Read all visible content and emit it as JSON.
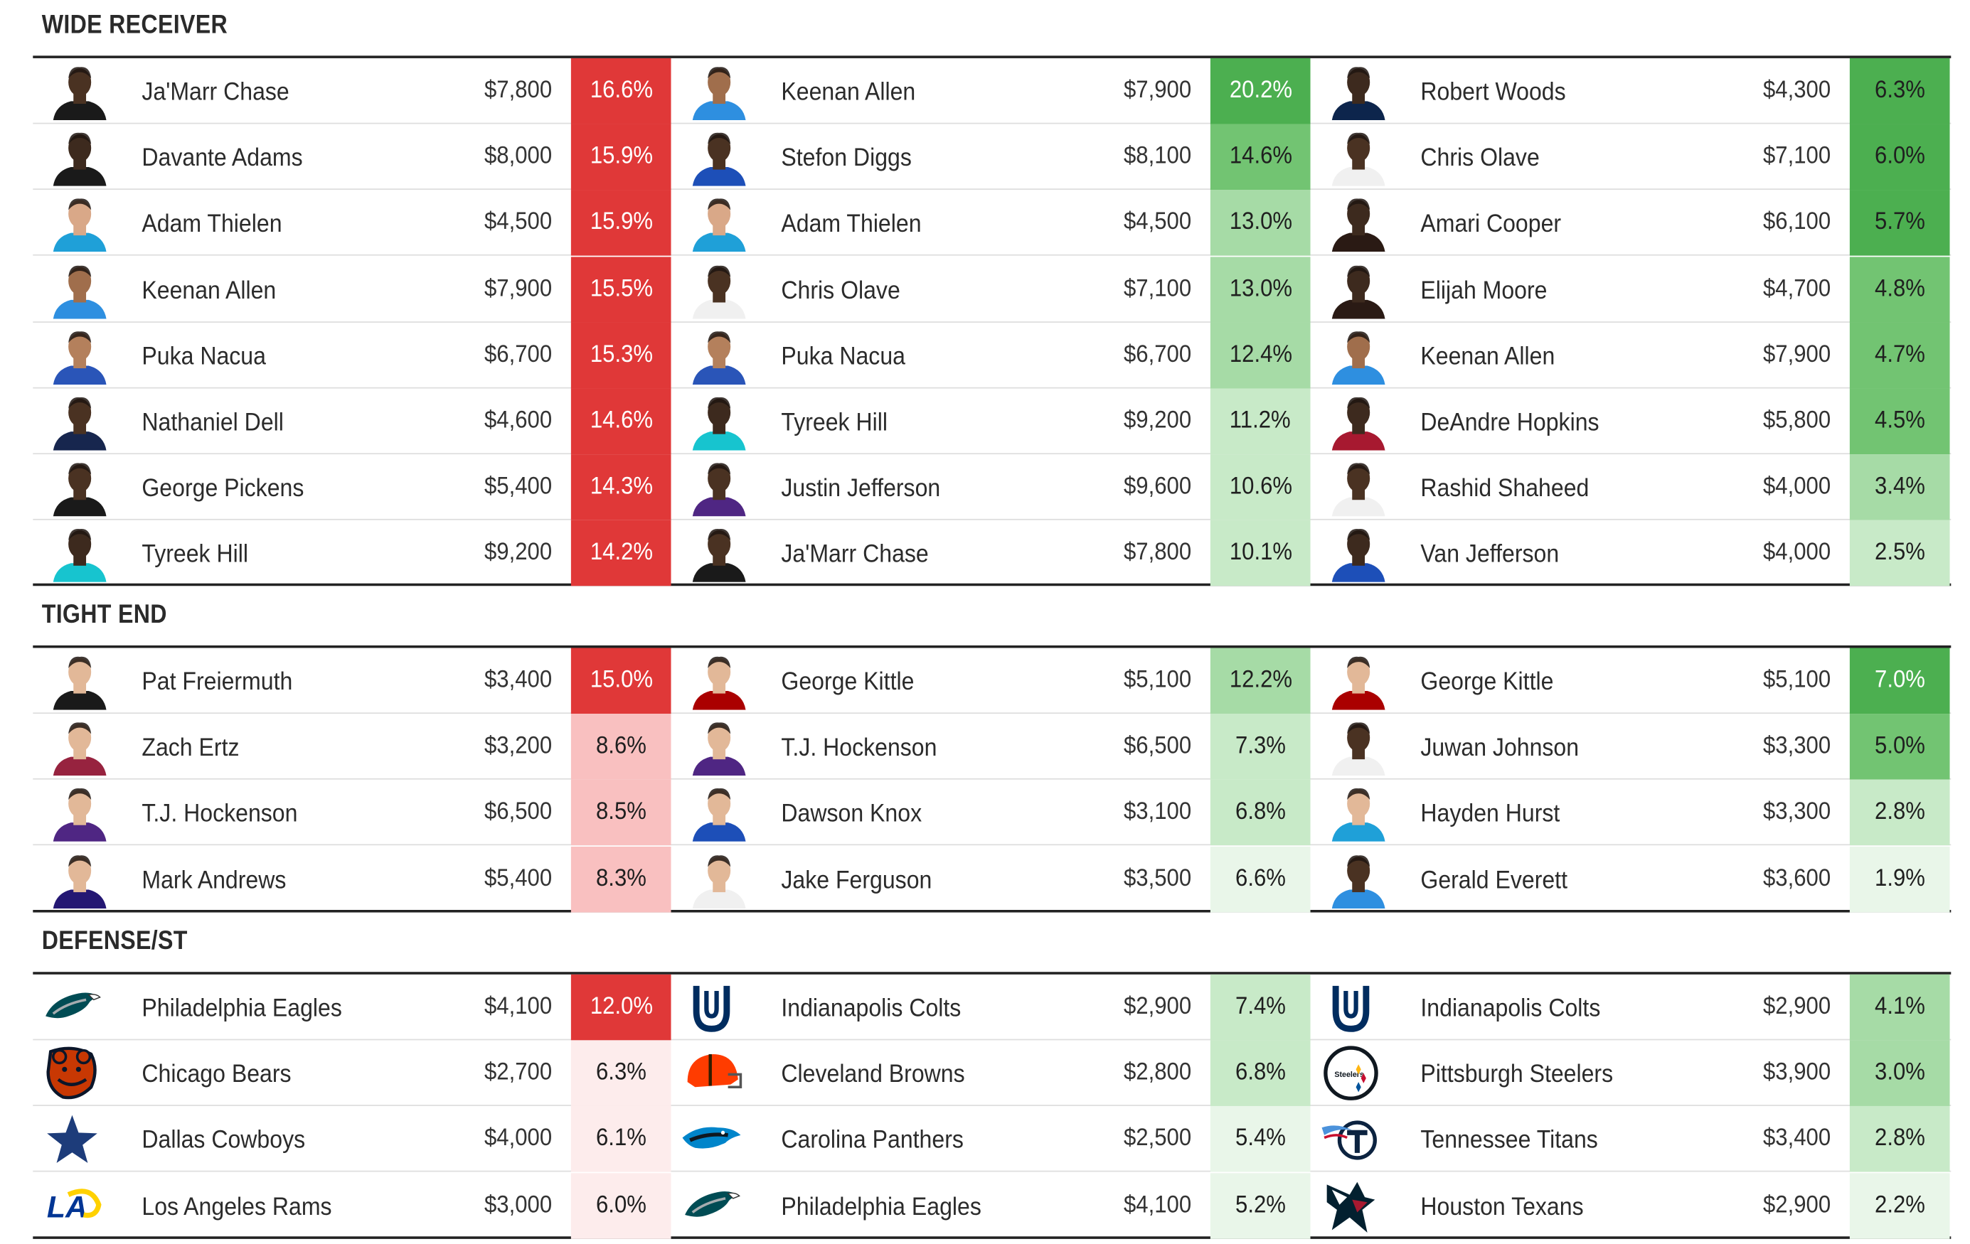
{
  "sections": [
    {
      "title": "WIDE RECEIVER",
      "groups": [
        {
          "players": [
            {
              "name": "Ja'Marr Chase",
              "salary": "$7,800",
              "pct": "16.6%",
              "jersey": "#1a1a1a",
              "skin": "#4a3222"
            },
            {
              "name": "Davante Adams",
              "salary": "$8,000",
              "pct": "15.9%",
              "jersey": "#1a1a1a",
              "skin": "#3d2a1e"
            },
            {
              "name": "Adam Thielen",
              "salary": "$4,500",
              "pct": "15.9%",
              "jersey": "#1fa0d8",
              "skin": "#d9a888"
            },
            {
              "name": "Keenan Allen",
              "salary": "$7,900",
              "pct": "15.5%",
              "jersey": "#2e8fe0",
              "skin": "#a06e4c"
            },
            {
              "name": "Puka Nacua",
              "salary": "$6,700",
              "pct": "15.3%",
              "jersey": "#2a55b8",
              "skin": "#b4805c"
            },
            {
              "name": "Nathaniel Dell",
              "salary": "$4,600",
              "pct": "14.6%",
              "jersey": "#17264e",
              "skin": "#4a3222"
            },
            {
              "name": "George Pickens",
              "salary": "$5,400",
              "pct": "14.3%",
              "jersey": "#1a1a1a",
              "skin": "#4a3222"
            },
            {
              "name": "Tyreek Hill",
              "salary": "$9,200",
              "pct": "14.2%",
              "jersey": "#17c4cf",
              "skin": "#3d2a1e"
            }
          ]
        },
        {
          "players": [
            {
              "name": "Keenan Allen",
              "salary": "$7,900",
              "pct": "20.2%",
              "jersey": "#2e8fe0",
              "skin": "#a06e4c"
            },
            {
              "name": "Stefon Diggs",
              "salary": "$8,100",
              "pct": "14.6%",
              "jersey": "#1d4fb8",
              "skin": "#4a3222"
            },
            {
              "name": "Adam Thielen",
              "salary": "$4,500",
              "pct": "13.0%",
              "jersey": "#1fa0d8",
              "skin": "#d9a888"
            },
            {
              "name": "Chris Olave",
              "salary": "$7,100",
              "pct": "13.0%",
              "jersey": "#f0f0f0",
              "skin": "#4a3222"
            },
            {
              "name": "Puka Nacua",
              "salary": "$6,700",
              "pct": "12.4%",
              "jersey": "#2a55b8",
              "skin": "#b4805c"
            },
            {
              "name": "Tyreek Hill",
              "salary": "$9,200",
              "pct": "11.2%",
              "jersey": "#17c4cf",
              "skin": "#3d2a1e"
            },
            {
              "name": "Justin Jefferson",
              "salary": "$9,600",
              "pct": "10.6%",
              "jersey": "#4f2683",
              "skin": "#4a3222"
            },
            {
              "name": "Ja'Marr Chase",
              "salary": "$7,800",
              "pct": "10.1%",
              "jersey": "#1a1a1a",
              "skin": "#4a3222"
            }
          ]
        },
        {
          "players": [
            {
              "name": "Robert Woods",
              "salary": "$4,300",
              "pct": "6.3%",
              "jersey": "#0d254c",
              "skin": "#3d2a1e"
            },
            {
              "name": "Chris Olave",
              "salary": "$7,100",
              "pct": "6.0%",
              "jersey": "#f0f0f0",
              "skin": "#4a3222"
            },
            {
              "name": "Amari Cooper",
              "salary": "$6,100",
              "pct": "5.7%",
              "jersey": "#2a1a14",
              "skin": "#3d2a1e"
            },
            {
              "name": "Elijah Moore",
              "salary": "$4,700",
              "pct": "4.8%",
              "jersey": "#2a1a14",
              "skin": "#3d2a1e"
            },
            {
              "name": "Keenan Allen",
              "salary": "$7,900",
              "pct": "4.7%",
              "jersey": "#2e8fe0",
              "skin": "#a06e4c"
            },
            {
              "name": "DeAndre Hopkins",
              "salary": "$5,800",
              "pct": "4.5%",
              "jersey": "#a71930",
              "skin": "#3d2a1e"
            },
            {
              "name": "Rashid Shaheed",
              "salary": "$4,000",
              "pct": "3.4%",
              "jersey": "#f0f0f0",
              "skin": "#4a3222"
            },
            {
              "name": "Van Jefferson",
              "salary": "$4,000",
              "pct": "2.5%",
              "jersey": "#1d4fb8",
              "skin": "#3d2a1e"
            }
          ]
        }
      ]
    },
    {
      "title": "TIGHT END",
      "groups": [
        {
          "players": [
            {
              "name": "Pat Freiermuth",
              "salary": "$3,400",
              "pct": "15.0%",
              "jersey": "#1a1a1a",
              "skin": "#e2b898"
            },
            {
              "name": "Zach Ertz",
              "salary": "$3,200",
              "pct": "8.6%",
              "jersey": "#97233f",
              "skin": "#e2b898"
            },
            {
              "name": "T.J. Hockenson",
              "salary": "$6,500",
              "pct": "8.5%",
              "jersey": "#4f2683",
              "skin": "#e2b898"
            },
            {
              "name": "Mark Andrews",
              "salary": "$5,400",
              "pct": "8.3%",
              "jersey": "#241773",
              "skin": "#e2b898"
            }
          ]
        },
        {
          "players": [
            {
              "name": "George Kittle",
              "salary": "$5,100",
              "pct": "12.2%",
              "jersey": "#aa0000",
              "skin": "#e2b898"
            },
            {
              "name": "T.J. Hockenson",
              "salary": "$6,500",
              "pct": "7.3%",
              "jersey": "#4f2683",
              "skin": "#e2b898"
            },
            {
              "name": "Dawson Knox",
              "salary": "$3,100",
              "pct": "6.8%",
              "jersey": "#1d4fb8",
              "skin": "#e2b898"
            },
            {
              "name": "Jake Ferguson",
              "salary": "$3,500",
              "pct": "6.6%",
              "jersey": "#f0f0f0",
              "skin": "#e2b898"
            }
          ]
        },
        {
          "players": [
            {
              "name": "George Kittle",
              "salary": "$5,100",
              "pct": "7.0%",
              "jersey": "#aa0000",
              "skin": "#e2b898"
            },
            {
              "name": "Juwan Johnson",
              "salary": "$3,300",
              "pct": "5.0%",
              "jersey": "#f0f0f0",
              "skin": "#4a3222"
            },
            {
              "name": "Hayden Hurst",
              "salary": "$3,300",
              "pct": "2.8%",
              "jersey": "#1fa0d8",
              "skin": "#e2b898"
            },
            {
              "name": "Gerald Everett",
              "salary": "$3,600",
              "pct": "1.9%",
              "jersey": "#2e8fe0",
              "skin": "#4a3222"
            }
          ]
        }
      ]
    },
    {
      "title": "DEFENSE/ST",
      "groups": [
        {
          "players": [
            {
              "name": "Philadelphia Eagles",
              "salary": "$4,100",
              "pct": "12.0%",
              "logo": "eagles"
            },
            {
              "name": "Chicago Bears",
              "salary": "$2,700",
              "pct": "6.3%",
              "logo": "bears"
            },
            {
              "name": "Dallas Cowboys",
              "salary": "$4,000",
              "pct": "6.1%",
              "logo": "cowboys"
            },
            {
              "name": "Los Angeles Rams",
              "salary": "$3,000",
              "pct": "6.0%",
              "logo": "rams"
            }
          ]
        },
        {
          "players": [
            {
              "name": "Indianapolis Colts",
              "salary": "$2,900",
              "pct": "7.4%",
              "logo": "colts"
            },
            {
              "name": "Cleveland Browns",
              "salary": "$2,800",
              "pct": "6.8%",
              "logo": "browns"
            },
            {
              "name": "Carolina Panthers",
              "salary": "$2,500",
              "pct": "5.4%",
              "logo": "panthers"
            },
            {
              "name": "Philadelphia Eagles",
              "salary": "$4,100",
              "pct": "5.2%",
              "logo": "eagles"
            }
          ]
        },
        {
          "players": [
            {
              "name": "Indianapolis Colts",
              "salary": "$2,900",
              "pct": "4.1%",
              "logo": "colts"
            },
            {
              "name": "Pittsburgh Steelers",
              "salary": "$3,900",
              "pct": "3.0%",
              "logo": "steelers"
            },
            {
              "name": "Tennessee Titans",
              "salary": "$3,400",
              "pct": "2.8%",
              "logo": "titans"
            },
            {
              "name": "Houston Texans",
              "salary": "$2,900",
              "pct": "2.2%",
              "logo": "texans"
            }
          ]
        }
      ]
    }
  ],
  "colors": {
    "red_scale": [
      "#fdecec",
      "#f9c0c0",
      "#f5a0a0",
      "#e84545",
      "#e03838"
    ],
    "green_scale": [
      "#e9f6e9",
      "#c8eac8",
      "#a6dba6",
      "#72c472",
      "#4caf50"
    ],
    "logo_steelers_text": "Steelers"
  }
}
